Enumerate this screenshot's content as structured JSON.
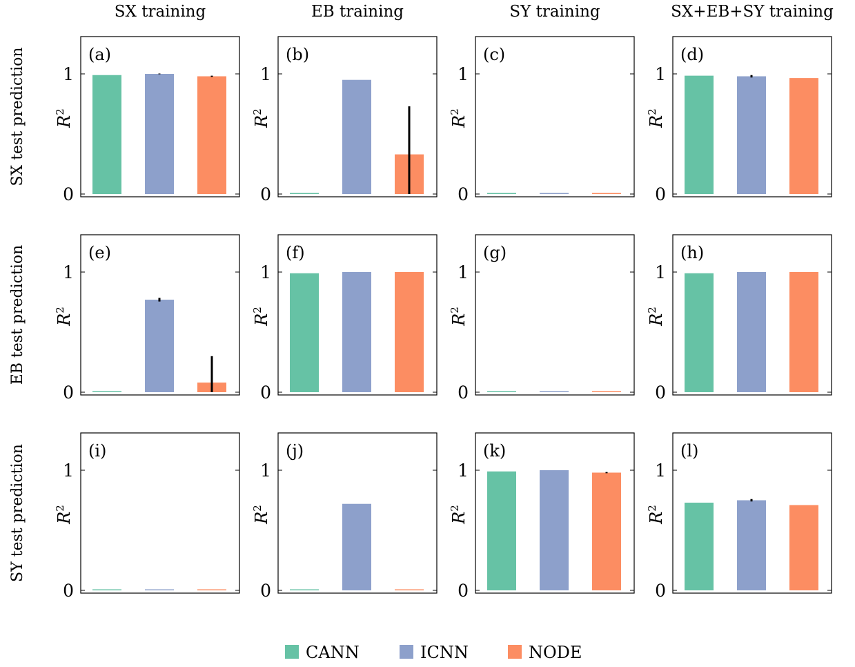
{
  "col_titles": [
    "SX training",
    "EB training",
    "SY training",
    "SX+EB+SY training"
  ],
  "row_titles": [
    "SX test prediction",
    "EB test prediction",
    "SY test prediction"
  ],
  "legend": [
    {
      "label": "CANN",
      "color": "#66c2a5"
    },
    {
      "label": "ICNN",
      "color": "#8da0cb"
    },
    {
      "label": "NODE",
      "color": "#fc8d62"
    }
  ],
  "chart_data": [
    {
      "type": "bar",
      "panel": "(a)",
      "row": 0,
      "col": 0,
      "ylabel": "R2",
      "ylim": [
        0,
        1.25
      ],
      "yticks": [
        0,
        1
      ],
      "categories": [
        "CANN",
        "ICNN",
        "NODE"
      ],
      "values": [
        0.99,
        1.0,
        0.98
      ],
      "errors": [
        0,
        0.003,
        0.005
      ]
    },
    {
      "type": "bar",
      "panel": "(b)",
      "row": 0,
      "col": 1,
      "ylabel": "R2",
      "ylim": [
        0,
        1.25
      ],
      "yticks": [
        0,
        1
      ],
      "categories": [
        "CANN",
        "ICNN",
        "NODE"
      ],
      "values": [
        0.0,
        0.95,
        0.33
      ],
      "errors": [
        0,
        0,
        0.4
      ]
    },
    {
      "type": "bar",
      "panel": "(c)",
      "row": 0,
      "col": 2,
      "ylabel": "R2",
      "ylim": [
        0,
        1.25
      ],
      "yticks": [
        0,
        1
      ],
      "categories": [
        "CANN",
        "ICNN",
        "NODE"
      ],
      "values": [
        0.0,
        0.0,
        0.0
      ],
      "errors": [
        0,
        0,
        0
      ]
    },
    {
      "type": "bar",
      "panel": "(d)",
      "row": 0,
      "col": 3,
      "ylabel": "R2",
      "ylim": [
        0,
        1.25
      ],
      "yticks": [
        0,
        1
      ],
      "categories": [
        "CANN",
        "ICNN",
        "NODE"
      ],
      "values": [
        0.985,
        0.98,
        0.965
      ],
      "errors": [
        0,
        0.01,
        0
      ]
    },
    {
      "type": "bar",
      "panel": "(e)",
      "row": 1,
      "col": 0,
      "ylabel": "R2",
      "ylim": [
        0,
        1.25
      ],
      "yticks": [
        0,
        1
      ],
      "categories": [
        "CANN",
        "ICNN",
        "NODE"
      ],
      "values": [
        0.0,
        0.77,
        0.08
      ],
      "errors": [
        0,
        0.015,
        0.22
      ]
    },
    {
      "type": "bar",
      "panel": "(f)",
      "row": 1,
      "col": 1,
      "ylabel": "R2",
      "ylim": [
        0,
        1.25
      ],
      "yticks": [
        0,
        1
      ],
      "categories": [
        "CANN",
        "ICNN",
        "NODE"
      ],
      "values": [
        0.99,
        1.0,
        1.0
      ],
      "errors": [
        0,
        0,
        0
      ]
    },
    {
      "type": "bar",
      "panel": "(g)",
      "row": 1,
      "col": 2,
      "ylabel": "R2",
      "ylim": [
        0,
        1.25
      ],
      "yticks": [
        0,
        1
      ],
      "categories": [
        "CANN",
        "ICNN",
        "NODE"
      ],
      "values": [
        0.0,
        0.0,
        0.0
      ],
      "errors": [
        0,
        0,
        0
      ]
    },
    {
      "type": "bar",
      "panel": "(h)",
      "row": 1,
      "col": 3,
      "ylabel": "R2",
      "ylim": [
        0,
        1.25
      ],
      "yticks": [
        0,
        1
      ],
      "categories": [
        "CANN",
        "ICNN",
        "NODE"
      ],
      "values": [
        0.99,
        1.0,
        1.0
      ],
      "errors": [
        0,
        0,
        0
      ]
    },
    {
      "type": "bar",
      "panel": "(i)",
      "row": 2,
      "col": 0,
      "ylabel": "R2",
      "ylim": [
        0,
        1.25
      ],
      "yticks": [
        0,
        1
      ],
      "categories": [
        "CANN",
        "ICNN",
        "NODE"
      ],
      "values": [
        0.0,
        0.0,
        0.0
      ],
      "errors": [
        0,
        0,
        0
      ]
    },
    {
      "type": "bar",
      "panel": "(j)",
      "row": 2,
      "col": 1,
      "ylabel": "R2",
      "ylim": [
        0,
        1.25
      ],
      "yticks": [
        0,
        1
      ],
      "categories": [
        "CANN",
        "ICNN",
        "NODE"
      ],
      "values": [
        0.0,
        0.72,
        0.0
      ],
      "errors": [
        0,
        0,
        0
      ]
    },
    {
      "type": "bar",
      "panel": "(k)",
      "row": 2,
      "col": 2,
      "ylabel": "R2",
      "ylim": [
        0,
        1.25
      ],
      "yticks": [
        0,
        1
      ],
      "categories": [
        "CANN",
        "ICNN",
        "NODE"
      ],
      "values": [
        0.99,
        1.0,
        0.98
      ],
      "errors": [
        0,
        0,
        0.005
      ]
    },
    {
      "type": "bar",
      "panel": "(l)",
      "row": 2,
      "col": 3,
      "ylabel": "R2",
      "ylim": [
        0,
        1.25
      ],
      "yticks": [
        0,
        1
      ],
      "categories": [
        "CANN",
        "ICNN",
        "NODE"
      ],
      "values": [
        0.73,
        0.75,
        0.71
      ],
      "errors": [
        0,
        0.01,
        0
      ]
    }
  ]
}
